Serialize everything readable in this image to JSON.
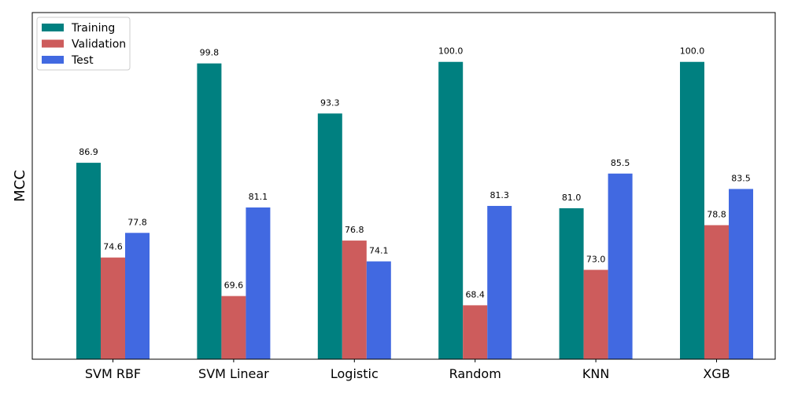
{
  "chart_data": {
    "type": "bar",
    "title": "",
    "xlabel": "",
    "ylabel": "MCC",
    "categories": [
      "SVM RBF",
      "SVM Linear",
      "Logistic",
      "Random",
      "KNN",
      "XGB"
    ],
    "series": [
      {
        "name": "Training",
        "color": "#008080",
        "values": [
          86.9,
          99.8,
          93.3,
          100.0,
          81.0,
          100.0
        ]
      },
      {
        "name": "Validation",
        "color": "#cd5c5c",
        "values": [
          74.6,
          69.6,
          76.8,
          68.4,
          73.0,
          78.8
        ]
      },
      {
        "name": "Test",
        "color": "#4169e1",
        "values": [
          77.8,
          81.1,
          74.1,
          81.3,
          85.5,
          83.5
        ]
      }
    ],
    "data_labels": true,
    "value_format": "0.0",
    "ylim": [
      61.4,
      106.4
    ],
    "y_ticks_shown": false,
    "grid": false,
    "legend_position": "top-left"
  }
}
